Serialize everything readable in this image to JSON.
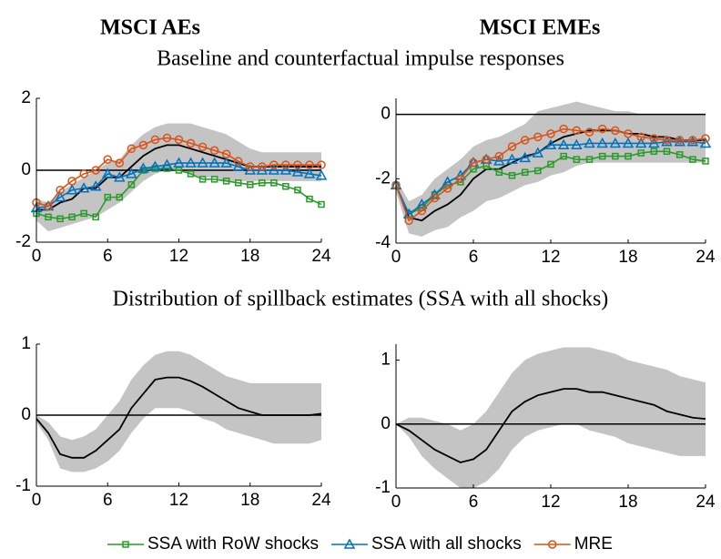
{
  "column_titles": [
    "MSCI AEs",
    "MSCI EMEs"
  ],
  "section_titles": [
    "Baseline and counterfactual impulse responses",
    "Distribution of spillback estimates (SSA with all shocks)"
  ],
  "chart_data": [
    {
      "type": "line",
      "x": [
        0,
        1,
        2,
        3,
        4,
        5,
        6,
        7,
        8,
        9,
        10,
        11,
        12,
        13,
        14,
        15,
        16,
        17,
        18,
        19,
        20,
        21,
        22,
        23,
        24
      ],
      "xlim": [
        0,
        24
      ],
      "xticks": [
        0,
        6,
        12,
        18,
        24
      ],
      "ylim": [
        -2,
        2
      ],
      "yticks": [
        -2,
        0,
        2
      ],
      "hline": 0,
      "band": {
        "color": "#c4c4c4",
        "upper": [
          -0.8,
          -0.9,
          -0.6,
          -0.4,
          -0.2,
          0,
          0.2,
          0.3,
          0.7,
          1.0,
          1.2,
          1.3,
          1.3,
          1.3,
          1.2,
          1.1,
          1.0,
          0.8,
          0.6,
          0.5,
          0.5,
          0.5,
          0.5,
          0.5,
          0.5
        ],
        "lower": [
          -1.4,
          -1.7,
          -1.6,
          -1.5,
          -1.4,
          -1.3,
          -1.1,
          -0.9,
          -0.6,
          -0.3,
          -0.1,
          0,
          0,
          -0.1,
          -0.2,
          -0.2,
          -0.3,
          -0.3,
          -0.3,
          -0.3,
          -0.3,
          -0.3,
          -0.3,
          -0.3,
          -0.3
        ]
      },
      "series": [
        {
          "color": "#000000",
          "values": [
            -1.1,
            -1.1,
            -0.9,
            -0.8,
            -0.5,
            -0.5,
            -0.2,
            -0.2,
            0.1,
            0.4,
            0.6,
            0.7,
            0.7,
            0.6,
            0.5,
            0.4,
            0.3,
            0.2,
            0.1,
            0.1,
            0.1,
            0.1,
            0.1,
            0.1,
            0.1
          ]
        },
        {
          "name": "SSA with RoW shocks",
          "color": "#2a9a2a",
          "marker": "square",
          "values": [
            -1.2,
            -1.3,
            -1.35,
            -1.3,
            -1.2,
            -1.3,
            -0.75,
            -0.75,
            -0.4,
            0,
            0.05,
            0.05,
            0,
            -0.1,
            -0.25,
            -0.25,
            -0.3,
            -0.35,
            -0.4,
            -0.35,
            -0.35,
            -0.45,
            -0.55,
            -0.8,
            -0.95
          ]
        },
        {
          "name": "SSA with all shocks",
          "color": "#0072bd",
          "marker": "triangle",
          "values": [
            -1.05,
            -1.0,
            -0.75,
            -0.55,
            -0.5,
            -0.45,
            -0.1,
            -0.2,
            -0.1,
            0.05,
            0.1,
            0.15,
            0.2,
            0.2,
            0.2,
            0.2,
            0.2,
            0.1,
            0,
            0,
            0,
            0,
            -0.05,
            -0.1,
            -0.15
          ]
        },
        {
          "name": "MRE",
          "color": "#d95319",
          "marker": "circle",
          "values": [
            -0.9,
            -1.0,
            -0.55,
            -0.3,
            -0.1,
            0,
            0.3,
            0.2,
            0.6,
            0.7,
            0.85,
            0.9,
            0.85,
            0.75,
            0.65,
            0.55,
            0.45,
            0.25,
            0.1,
            0.1,
            0.15,
            0.15,
            0.15,
            0.15,
            0.15
          ]
        }
      ]
    },
    {
      "type": "line",
      "x": [
        0,
        1,
        2,
        3,
        4,
        5,
        6,
        7,
        8,
        9,
        10,
        11,
        12,
        13,
        14,
        15,
        16,
        17,
        18,
        19,
        20,
        21,
        22,
        23,
        24
      ],
      "xlim": [
        0,
        24
      ],
      "xticks": [
        0,
        6,
        12,
        18,
        24
      ],
      "ylim": [
        -4,
        0.5
      ],
      "yticks": [
        -4,
        -2,
        0
      ],
      "hline": 0,
      "band": {
        "color": "#c4c4c4",
        "upper": [
          -2.0,
          -2.7,
          -2.5,
          -2.0,
          -1.7,
          -1.4,
          -1.0,
          -0.8,
          -0.7,
          -0.5,
          -0.3,
          0.1,
          0.2,
          0.3,
          0.4,
          0.3,
          0.2,
          0.1,
          0.1,
          0,
          0,
          0,
          0,
          0,
          0
        ],
        "lower": [
          -2.4,
          -3.7,
          -3.8,
          -3.6,
          -3.5,
          -3.2,
          -3.0,
          -2.7,
          -2.6,
          -2.4,
          -2.2,
          -2.1,
          -1.9,
          -1.8,
          -1.6,
          -1.5,
          -1.5,
          -1.5,
          -1.5,
          -1.5,
          -1.5,
          -1.5,
          -1.5,
          -1.5,
          -1.5
        ]
      },
      "series": [
        {
          "color": "#000000",
          "values": [
            -2.2,
            -3.2,
            -3.3,
            -3.0,
            -2.8,
            -2.5,
            -2.0,
            -1.7,
            -1.7,
            -1.5,
            -1.3,
            -1.2,
            -0.9,
            -0.7,
            -0.6,
            -0.5,
            -0.5,
            -0.5,
            -0.6,
            -0.6,
            -0.7,
            -0.7,
            -0.8,
            -0.8,
            -0.8
          ]
        },
        {
          "name": "SSA with RoW shocks",
          "color": "#2a9a2a",
          "marker": "square",
          "values": [
            -2.2,
            -3.1,
            -2.9,
            -2.5,
            -2.2,
            -2.1,
            -1.7,
            -1.6,
            -1.8,
            -1.9,
            -1.8,
            -1.75,
            -1.55,
            -1.3,
            -1.4,
            -1.4,
            -1.3,
            -1.3,
            -1.3,
            -1.2,
            -1.15,
            -1.15,
            -1.25,
            -1.4,
            -1.45
          ]
        },
        {
          "name": "SSA with all shocks",
          "color": "#0072bd",
          "marker": "triangle",
          "values": [
            -2.2,
            -3.1,
            -2.8,
            -2.5,
            -2.1,
            -1.9,
            -1.5,
            -1.4,
            -1.45,
            -1.4,
            -1.35,
            -1.2,
            -0.95,
            -0.95,
            -0.95,
            -0.9,
            -0.9,
            -0.9,
            -0.9,
            -0.9,
            -0.9,
            -0.85,
            -0.85,
            -0.85,
            -0.9
          ]
        },
        {
          "name": "MRE",
          "color": "#d95319",
          "marker": "circle",
          "values": [
            -2.2,
            -3.3,
            -3.0,
            -2.6,
            -2.3,
            -2.0,
            -1.5,
            -1.4,
            -1.3,
            -1.0,
            -0.8,
            -0.7,
            -0.6,
            -0.45,
            -0.5,
            -0.55,
            -0.45,
            -0.5,
            -0.6,
            -0.7,
            -0.75,
            -0.8,
            -0.8,
            -0.8,
            -0.75
          ]
        }
      ]
    },
    {
      "type": "line",
      "x": [
        0,
        1,
        2,
        3,
        4,
        5,
        6,
        7,
        8,
        9,
        10,
        11,
        12,
        13,
        14,
        15,
        16,
        17,
        18,
        19,
        20,
        21,
        22,
        23,
        24
      ],
      "xlim": [
        0,
        24
      ],
      "xticks": [
        0,
        6,
        12,
        18,
        24
      ],
      "ylim": [
        -1,
        1
      ],
      "yticks": [
        -1,
        0,
        1
      ],
      "hline": 0,
      "band": {
        "color": "#c4c4c4",
        "upper": [
          0,
          -0.1,
          -0.3,
          -0.35,
          -0.3,
          -0.2,
          0,
          0.2,
          0.5,
          0.7,
          0.85,
          0.9,
          0.9,
          0.85,
          0.75,
          0.65,
          0.55,
          0.5,
          0.45,
          0.45,
          0.45,
          0.45,
          0.45,
          0.45,
          0.45
        ],
        "lower": [
          -0.1,
          -0.35,
          -0.75,
          -0.8,
          -0.8,
          -0.75,
          -0.65,
          -0.5,
          -0.25,
          -0.05,
          0.1,
          0.1,
          0.1,
          0.05,
          -0.05,
          -0.1,
          -0.2,
          -0.25,
          -0.3,
          -0.35,
          -0.4,
          -0.4,
          -0.4,
          -0.4,
          -0.35
        ]
      },
      "series": [
        {
          "color": "#000000",
          "values": [
            -0.05,
            -0.25,
            -0.55,
            -0.6,
            -0.6,
            -0.5,
            -0.35,
            -0.2,
            0.1,
            0.3,
            0.5,
            0.53,
            0.53,
            0.48,
            0.4,
            0.3,
            0.2,
            0.1,
            0.05,
            0,
            0,
            0,
            0,
            0,
            0.02
          ]
        }
      ]
    },
    {
      "type": "line",
      "x": [
        0,
        1,
        2,
        3,
        4,
        5,
        6,
        7,
        8,
        9,
        10,
        11,
        12,
        13,
        14,
        15,
        16,
        17,
        18,
        19,
        20,
        21,
        22,
        23,
        24
      ],
      "xlim": [
        0,
        24
      ],
      "xticks": [
        0,
        6,
        12,
        18,
        24
      ],
      "ylim": [
        -1,
        1.25
      ],
      "yticks": [
        -1,
        0,
        1
      ],
      "hline": 0,
      "band": {
        "color": "#c4c4c4",
        "upper": [
          0,
          0.1,
          0.1,
          0.05,
          0,
          -0.1,
          0,
          0.2,
          0.5,
          0.8,
          1.0,
          1.1,
          1.15,
          1.2,
          1.2,
          1.2,
          1.15,
          1.1,
          1.0,
          0.95,
          0.9,
          0.85,
          0.75,
          0.7,
          0.65
        ],
        "lower": [
          0,
          -0.2,
          -0.5,
          -0.7,
          -0.85,
          -1.0,
          -1.0,
          -0.9,
          -0.7,
          -0.4,
          -0.2,
          -0.1,
          -0.05,
          0,
          0,
          -0.1,
          -0.15,
          -0.2,
          -0.3,
          -0.35,
          -0.4,
          -0.45,
          -0.5,
          -0.5,
          -0.5
        ]
      },
      "series": [
        {
          "color": "#000000",
          "values": [
            0,
            -0.1,
            -0.25,
            -0.4,
            -0.5,
            -0.6,
            -0.55,
            -0.4,
            -0.1,
            0.2,
            0.35,
            0.45,
            0.5,
            0.55,
            0.55,
            0.5,
            0.5,
            0.45,
            0.4,
            0.35,
            0.3,
            0.2,
            0.15,
            0.1,
            0.08
          ]
        }
      ]
    }
  ]
}
